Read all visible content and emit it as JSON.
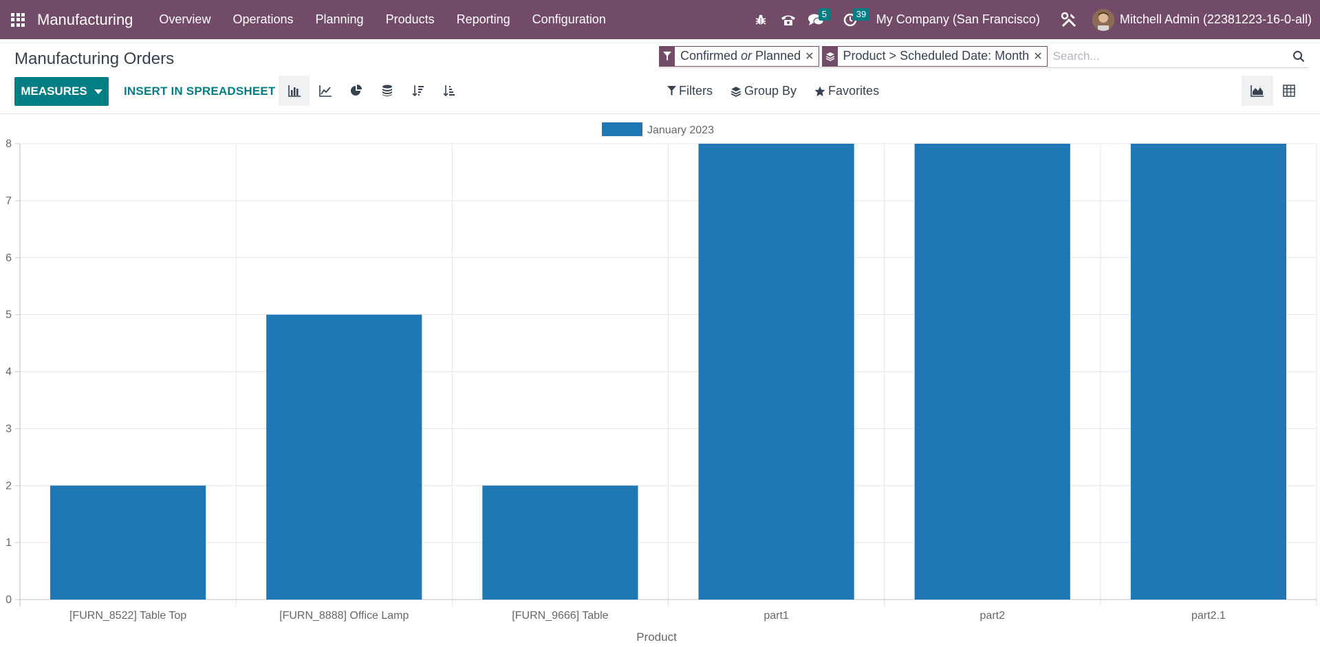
{
  "navbar": {
    "brand": "Manufacturing",
    "menu": [
      "Overview",
      "Operations",
      "Planning",
      "Products",
      "Reporting",
      "Configuration"
    ],
    "messages_count": "5",
    "activities_count": "39",
    "company": "My Company (San Francisco)",
    "user": "Mitchell Admin (22381223-16-0-all)"
  },
  "control_panel": {
    "title": "Manufacturing Orders",
    "measures_label": "MEASURES",
    "insert_label": "INSERT IN SPREADSHEET",
    "facets": [
      {
        "icon": "filter-icon",
        "label_html": "Confirmed <i>or</i> Planned"
      },
      {
        "icon": "layers-icon",
        "label": "Product > Scheduled Date: Month"
      }
    ],
    "facet_1_label_a": "Confirmed ",
    "facet_1_label_or": "or",
    "facet_1_label_b": " Planned",
    "facet_2_label": "Product > Scheduled Date: Month",
    "search_placeholder": "Search...",
    "filters_label": "Filters",
    "groupby_label": "Group By",
    "favorites_label": "Favorites"
  },
  "colors": {
    "navbar": "#714b67",
    "accent": "#017e84",
    "bar": "#1f77b4"
  },
  "chart_data": {
    "type": "bar",
    "categories": [
      "[FURN_8522] Table Top",
      "[FURN_8888] Office Lamp",
      "[FURN_9666] Table",
      "part1",
      "part2",
      "part2.1"
    ],
    "series": [
      {
        "name": "January 2023",
        "values": [
          2,
          5,
          2,
          8,
          8,
          8
        ]
      }
    ],
    "xlabel": "Product",
    "ylabel": "",
    "ylim": [
      0,
      8
    ],
    "yticks": [
      0,
      1,
      2,
      3,
      4,
      5,
      6,
      7,
      8
    ],
    "grid": true,
    "legend": "top-center"
  }
}
